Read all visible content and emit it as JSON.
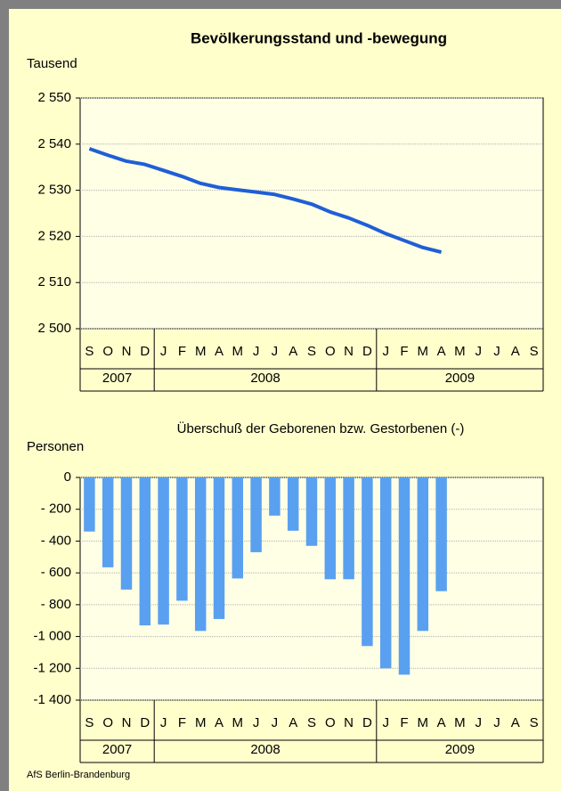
{
  "chart_data": [
    {
      "type": "line",
      "title": "Bevölkerungsstand und -bewegung",
      "y_label": "Tausend",
      "categories": [
        "S",
        "O",
        "N",
        "D",
        "J",
        "F",
        "M",
        "A",
        "M",
        "J",
        "J",
        "A",
        "S",
        "O",
        "N",
        "D",
        "J",
        "F",
        "M",
        "A",
        "M",
        "J",
        "J",
        "A",
        "S"
      ],
      "x_groups": [
        {
          "label": "2007",
          "span": 4
        },
        {
          "label": "2008",
          "span": 12
        },
        {
          "label": "2009",
          "span": 9
        }
      ],
      "series": [
        {
          "color": "#1f5fd6",
          "values": [
            2539,
            2537.6,
            2536.3,
            2535.6,
            2534.3,
            2533,
            2531.5,
            2530.6,
            2530.1,
            2529.6,
            2529.1,
            2528.1,
            2527,
            2525.3,
            2524,
            2522.4,
            2520.6,
            2519.1,
            2517.6,
            2516.6,
            null,
            null,
            null,
            null,
            null
          ]
        }
      ],
      "ylim": [
        2500,
        2550
      ],
      "yticks": [
        {
          "value": 2500,
          "label": "2 500"
        },
        {
          "value": 2510,
          "label": "2 510"
        },
        {
          "value": 2520,
          "label": "2 520"
        },
        {
          "value": 2530,
          "label": "2 530"
        },
        {
          "value": 2540,
          "label": "2 540"
        },
        {
          "value": 2550,
          "label": "2 550"
        }
      ],
      "grid": true
    },
    {
      "type": "bar",
      "title": "Überschuß der Geborenen bzw. Gestorbenen (-)",
      "y_label": "Personen",
      "categories": [
        "S",
        "O",
        "N",
        "D",
        "J",
        "F",
        "M",
        "A",
        "M",
        "J",
        "J",
        "A",
        "S",
        "O",
        "N",
        "D",
        "J",
        "F",
        "M",
        "A",
        "M",
        "J",
        "J",
        "A",
        "S"
      ],
      "x_groups": [
        {
          "label": "2007",
          "span": 4
        },
        {
          "label": "2008",
          "span": 12
        },
        {
          "label": "2009",
          "span": 9
        }
      ],
      "series": [
        {
          "color": "#5aa0f0",
          "values": [
            -340,
            -565,
            -705,
            -930,
            -925,
            -775,
            -965,
            -890,
            -635,
            -470,
            -240,
            -335,
            -430,
            -640,
            -640,
            -1060,
            -1200,
            -1240,
            -965,
            -715,
            null,
            null,
            null,
            null,
            null
          ]
        }
      ],
      "ylim": [
        -1400,
        0
      ],
      "yticks": [
        {
          "value": -1400,
          "label": "-1 400"
        },
        {
          "value": -1200,
          "label": "-1 200"
        },
        {
          "value": -1000,
          "label": "-1 000"
        },
        {
          "value": -800,
          "label": "- 800"
        },
        {
          "value": -600,
          "label": "- 600"
        },
        {
          "value": -400,
          "label": "- 400"
        },
        {
          "value": -200,
          "label": "- 200"
        },
        0
      ],
      "grid": true
    }
  ],
  "footer": "AfS Berlin-Brandenburg"
}
